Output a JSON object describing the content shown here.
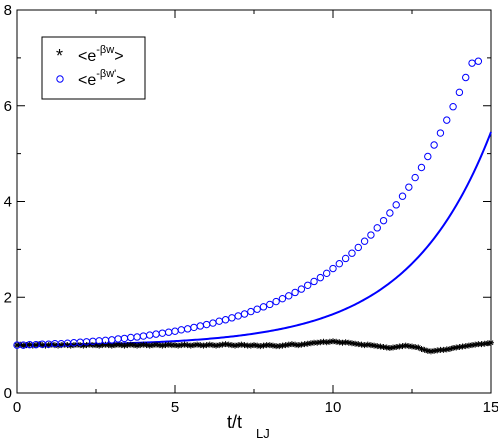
{
  "chart_data": {
    "type": "scatter",
    "xlim": [
      0,
      15
    ],
    "ylim": [
      0,
      8
    ],
    "x_ticks": [
      "0",
      "5",
      "10",
      "15"
    ],
    "y_ticks": [
      "0",
      "2",
      "4",
      "6",
      "8"
    ],
    "xlabel": {
      "main": "t/t",
      "sub": "LJ"
    },
    "ylabel": "",
    "grid": false,
    "legend_position": "top-left",
    "legend": [
      {
        "symbol": "*",
        "text_prefix": "<e",
        "text_sup": "-βw",
        "text_suffix": ">",
        "color": "#000000"
      },
      {
        "symbol": "o",
        "text_prefix": "<e",
        "text_sup": "-βw'",
        "text_suffix": ">",
        "color": "#0000ff"
      }
    ],
    "series": [
      {
        "marker": "star",
        "color": "#000000",
        "x_start": 0.0,
        "x_step": 0.1,
        "y": [
          1.0,
          1.01,
          0.99,
          1.0,
          1.01,
          0.99,
          1.0,
          1.02,
          1.0,
          0.99,
          1.0,
          1.01,
          1.0,
          0.99,
          1.0,
          1.01,
          1.0,
          0.99,
          1.0,
          1.01,
          1.0,
          0.99,
          1.0,
          1.01,
          1.0,
          1.0,
          0.99,
          1.0,
          1.01,
          1.0,
          0.99,
          1.0,
          1.01,
          1.0,
          0.99,
          1.0,
          1.01,
          1.0,
          0.99,
          1.0,
          1.01,
          1.0,
          0.99,
          1.0,
          1.01,
          1.0,
          0.99,
          1.0,
          1.01,
          1.0,
          1.0,
          0.99,
          1.0,
          1.01,
          1.0,
          0.99,
          1.0,
          1.01,
          1.0,
          0.99,
          1.0,
          1.01,
          1.0,
          0.99,
          1.0,
          1.01,
          1.02,
          1.01,
          1.0,
          0.99,
          1.0,
          1.01,
          1.0,
          0.99,
          0.99,
          1.0,
          0.99,
          0.98,
          0.99,
          1.0,
          1.0,
          0.99,
          0.98,
          0.98,
          0.99,
          1.0,
          1.01,
          1.02,
          1.01,
          1.0,
          1.01,
          1.02,
          1.03,
          1.04,
          1.05,
          1.05,
          1.06,
          1.07,
          1.06,
          1.07,
          1.08,
          1.07,
          1.06,
          1.05,
          1.06,
          1.05,
          1.04,
          1.03,
          1.02,
          1.01,
          1.0,
          1.01,
          1.0,
          0.99,
          0.98,
          0.97,
          0.96,
          0.95,
          0.94,
          0.95,
          0.96,
          0.97,
          0.98,
          0.99,
          0.98,
          0.97,
          0.96,
          0.95,
          0.92,
          0.9,
          0.88,
          0.87,
          0.88,
          0.89,
          0.9,
          0.9,
          0.91,
          0.92,
          0.94,
          0.95,
          0.96,
          0.97,
          0.98,
          0.99,
          1.0,
          1.01,
          1.02,
          1.02,
          1.03,
          1.04,
          1.05
        ]
      },
      {
        "marker": "circle",
        "color": "#0000ff",
        "x_start": 0.0,
        "x_step": 0.2,
        "y": [
          1.0,
          1.0,
          1.01,
          1.01,
          1.02,
          1.02,
          1.03,
          1.03,
          1.04,
          1.05,
          1.06,
          1.07,
          1.08,
          1.09,
          1.1,
          1.11,
          1.13,
          1.14,
          1.16,
          1.17,
          1.19,
          1.21,
          1.23,
          1.25,
          1.27,
          1.29,
          1.32,
          1.34,
          1.37,
          1.4,
          1.43,
          1.46,
          1.5,
          1.53,
          1.57,
          1.61,
          1.65,
          1.7,
          1.75,
          1.8,
          1.85,
          1.91,
          1.97,
          2.03,
          2.1,
          2.17,
          2.25,
          2.33,
          2.41,
          2.5,
          2.6,
          2.7,
          2.81,
          2.92,
          3.04,
          3.17,
          3.3,
          3.45,
          3.6,
          3.76,
          3.93,
          4.11,
          4.3,
          4.5,
          4.71,
          4.94,
          5.18,
          5.43,
          5.7,
          5.98,
          6.28,
          6.59,
          6.89,
          6.93
        ]
      },
      {
        "marker": "line",
        "color": "#0000ff",
        "curve": "exponential",
        "x_range": [
          0,
          15
        ],
        "a": 0.0145,
        "b": 0.382
      }
    ]
  }
}
